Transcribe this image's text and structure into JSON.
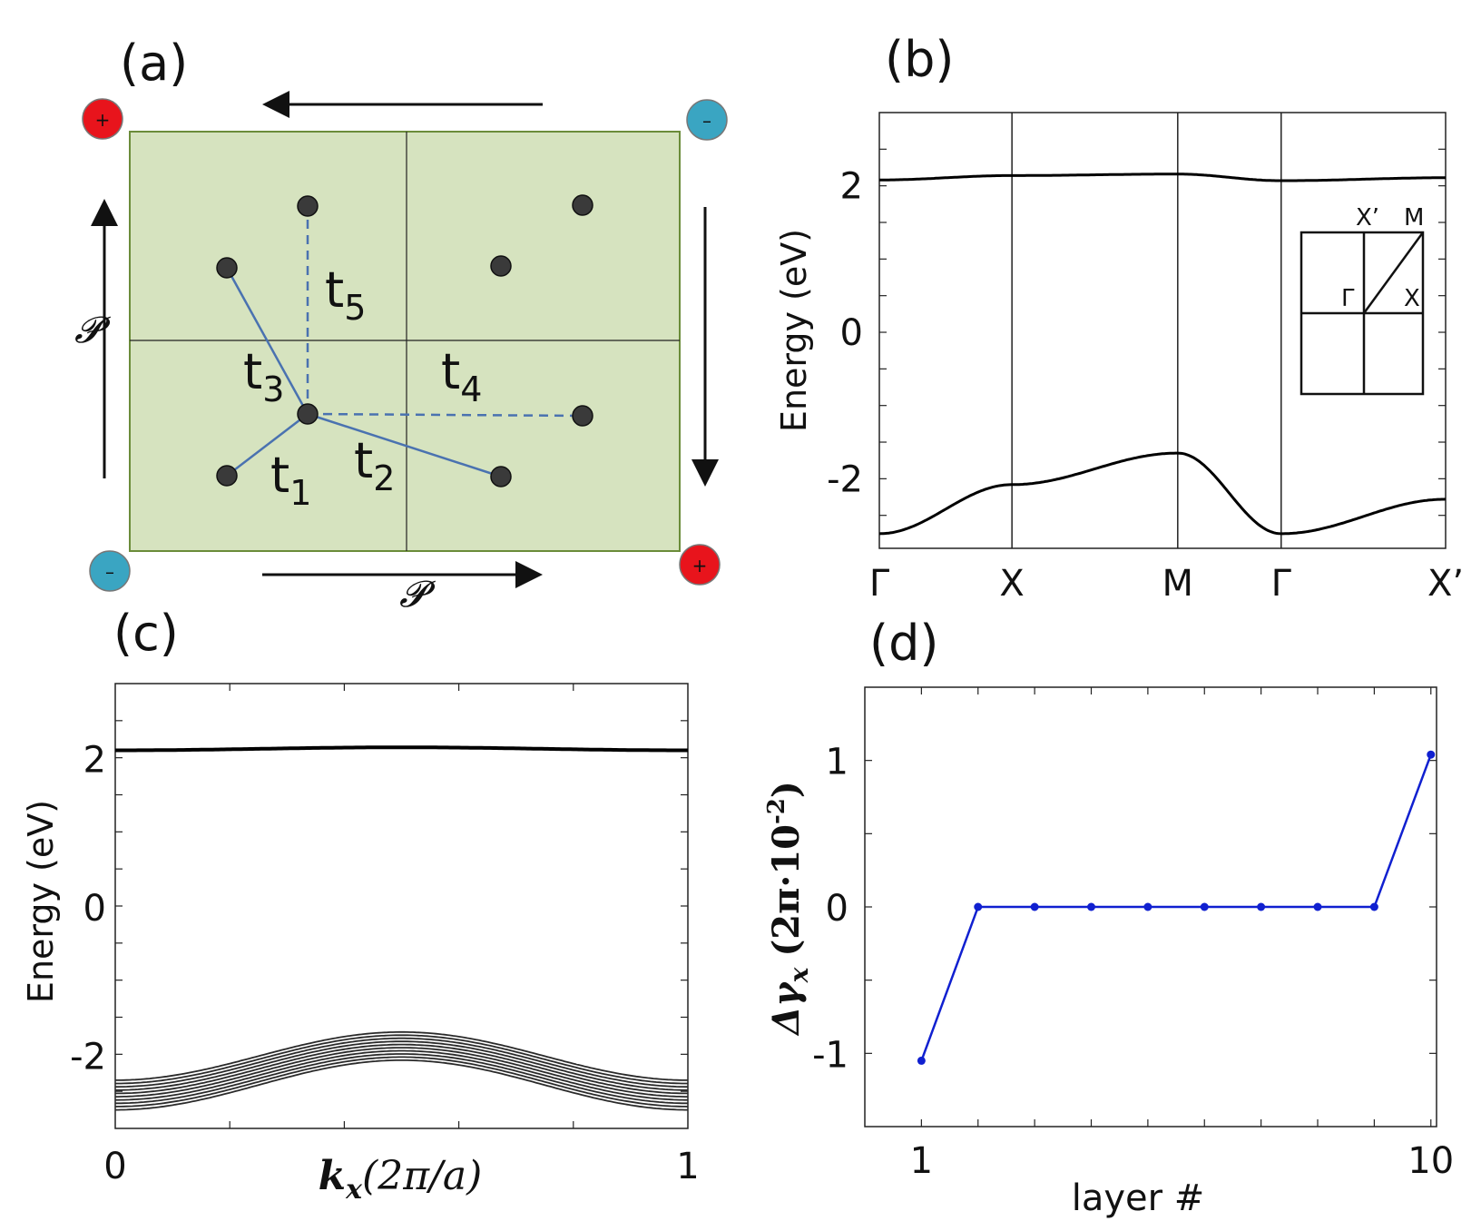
{
  "chart_data": [
    {
      "panel": "(a)",
      "type": "diagram",
      "title": "(a)",
      "hoppings": [
        {
          "name": "t1",
          "base": "t",
          "sub": "1"
        },
        {
          "name": "t2",
          "base": "t",
          "sub": "2"
        },
        {
          "name": "t3",
          "base": "t",
          "sub": "3"
        },
        {
          "name": "t4",
          "base": "t",
          "sub": "4"
        },
        {
          "name": "t5",
          "base": "t",
          "sub": "5"
        }
      ],
      "symmetry_label": "𝓟",
      "charges": [
        {
          "corner": "top-left",
          "sign": "+",
          "color": "#e8141c"
        },
        {
          "corner": "top-right",
          "sign": "–",
          "color": "#3aa5c2"
        },
        {
          "corner": "bottom-left",
          "sign": "–",
          "color": "#3aa5c2"
        },
        {
          "corner": "bottom-right",
          "sign": "+",
          "color": "#e8141c"
        }
      ],
      "cell_color": "#d6e3bf",
      "cell_border_color": "#6b8c3a",
      "site_color": "#3a3a3a",
      "bond_color": "#4a72b0"
    },
    {
      "panel": "(b)",
      "type": "line",
      "title": "(b)",
      "ylabel": "Energy (eV)",
      "ylim": [
        -2.95,
        3.0
      ],
      "yticks": [
        "2",
        "0",
        "-2"
      ],
      "ytick_values": [
        2,
        0,
        -2
      ],
      "kpath_labels": [
        "Γ",
        "X",
        "M",
        "Γ",
        "X’"
      ],
      "kpath_positions": [
        0,
        1,
        2.25,
        3.03,
        4.27
      ],
      "series": [
        {
          "name": "upper band",
          "x": [
            0,
            1,
            2.25,
            3.03,
            4.27
          ],
          "y": [
            2.08,
            2.14,
            2.16,
            2.07,
            2.11
          ]
        },
        {
          "name": "lower band",
          "x": [
            0,
            1,
            2.25,
            3.03,
            4.27
          ],
          "y": [
            -2.75,
            -2.08,
            -1.65,
            -2.75,
            -2.28
          ]
        }
      ],
      "inset": {
        "labels": [
          "X’",
          "M",
          "Γ",
          "X"
        ]
      },
      "line_color": "#000000"
    },
    {
      "panel": "(c)",
      "type": "line",
      "title": "(c)",
      "ylabel": "Energy (eV)",
      "xlabel_math": "k",
      "xlabel_sub": "x",
      "xlabel_rest": "(2π/a)",
      "xlim": [
        0,
        1
      ],
      "xticks": [
        "0",
        "1"
      ],
      "ylim": [
        -3.0,
        3.0
      ],
      "yticks": [
        "2",
        "0",
        "-2"
      ],
      "ytick_values": [
        2,
        0,
        -2
      ],
      "series": [
        {
          "name": "flat upper band",
          "center": 2.1,
          "amplitude": 0.04
        },
        {
          "name": "lower band manifold",
          "count": 10,
          "min_offsets": [
            -2.35,
            -2.75
          ],
          "peak": [
            -1.7,
            -2.08
          ]
        }
      ],
      "line_color": "#000000"
    },
    {
      "panel": "(d)",
      "type": "line",
      "title": "(d)",
      "xlabel": "layer #",
      "ylabel_math": "Δγ",
      "ylabel_sub": "x",
      "ylabel_rest": "(2π·10",
      "ylabel_sup": "-2",
      "ylabel_close": ")",
      "xlim": [
        0,
        10.1
      ],
      "ylim": [
        -1.5,
        1.5
      ],
      "xticks": [
        "1",
        "10"
      ],
      "xtick_values": [
        1,
        10
      ],
      "yticks": [
        "1",
        "0",
        "-1"
      ],
      "ytick_values": [
        1,
        0,
        -1
      ],
      "x": [
        1,
        2,
        3,
        4,
        5,
        6,
        7,
        8,
        9,
        10
      ],
      "values": [
        -1.05,
        0,
        0,
        0,
        0,
        0,
        0,
        0,
        0,
        1.04
      ],
      "line_color": "#1020d0"
    }
  ]
}
